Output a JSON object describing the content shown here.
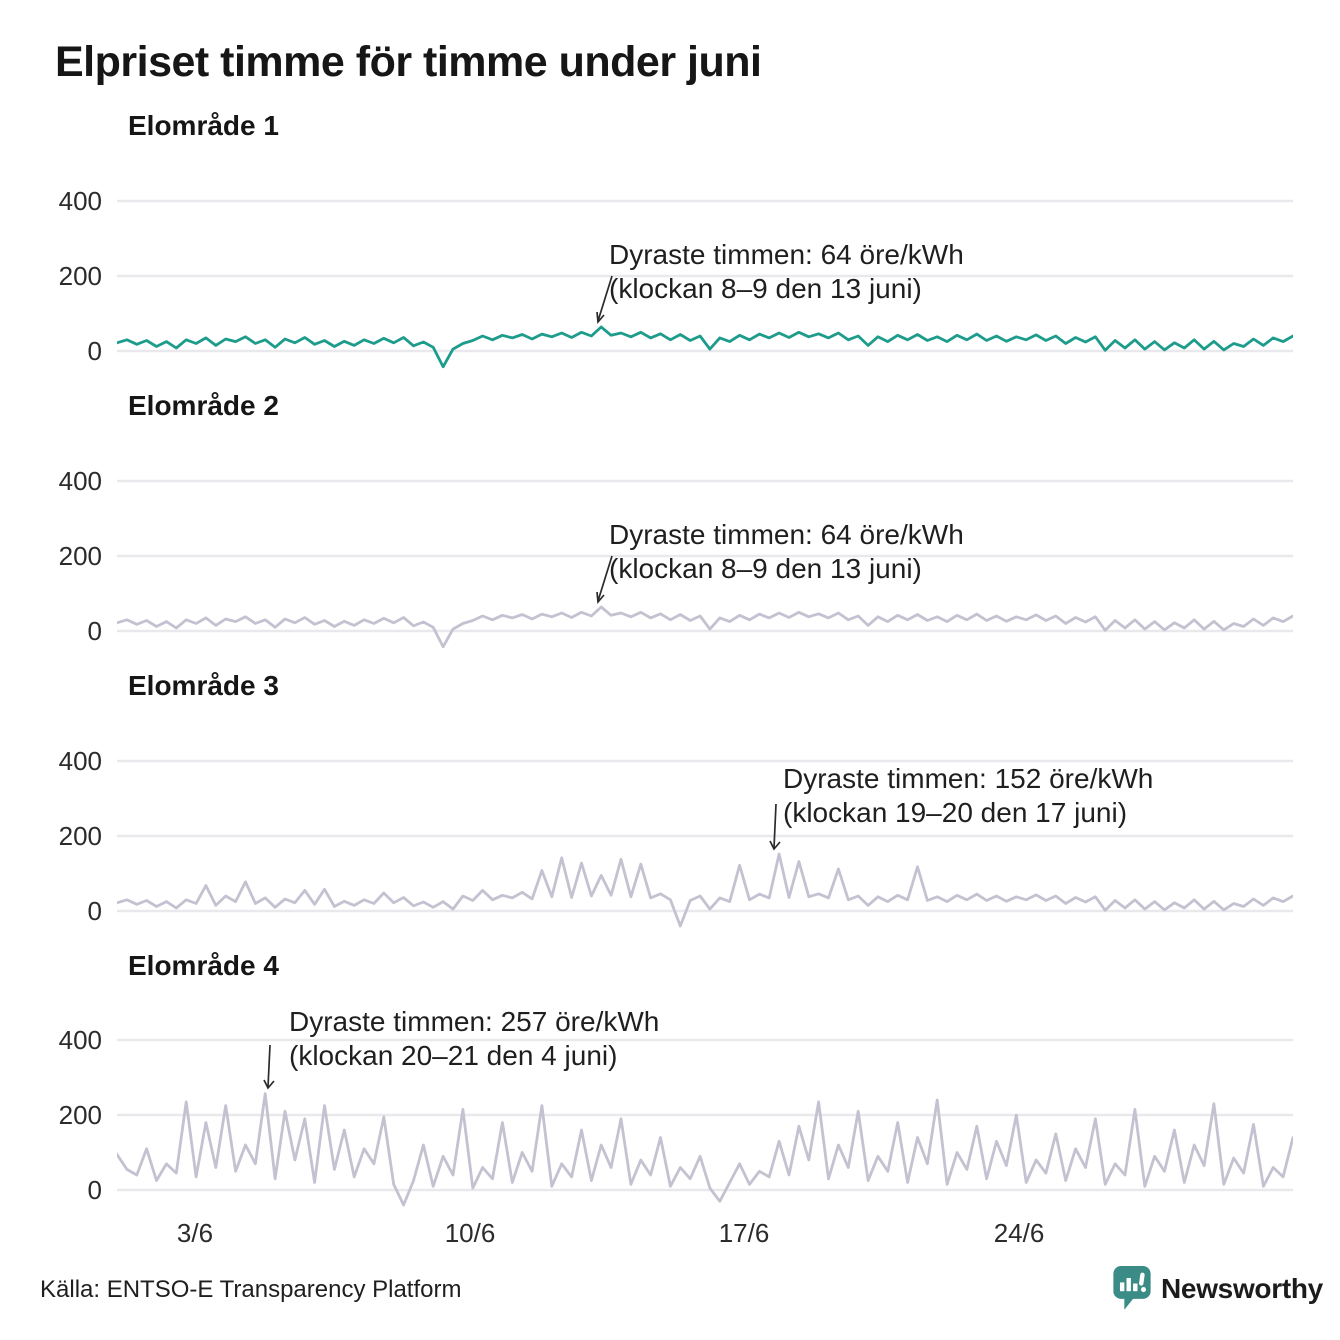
{
  "title": "Elpriset timme för timme under juni",
  "source": "Källa: ENTSO-E Transparency Platform",
  "logo": {
    "text": "Newsworthy",
    "color": "#3b8c86"
  },
  "colors": {
    "teal_line": "#1d9c8c",
    "gray_line": "#c4c2d0",
    "grid": "#e9e9ed",
    "text": "#1f1f1f"
  },
  "y_ticks_display": [
    "400",
    "200",
    "0"
  ],
  "x_axis": {
    "ticks": [
      "3/6",
      "10/6",
      "17/6",
      "24/6"
    ]
  },
  "chart_data": [
    {
      "type": "line",
      "title": "Elområde 1",
      "unit": "öre/kWh",
      "color": "#1d9c8c",
      "x_range": {
        "start": "1/6",
        "end": "30/6",
        "points_per_day": 4
      },
      "x_tick_labels": [
        "3/6",
        "10/6",
        "17/6",
        "24/6"
      ],
      "ylim": [
        -60,
        480
      ],
      "y_ticks": [
        0,
        200,
        400
      ],
      "grid": true,
      "max_point": {
        "value": 64,
        "time": "klockan 8–9 den 13 juni"
      },
      "annotation": {
        "line1": "Dyraste timmen: 64 öre/kWh",
        "line2": "(klockan 8–9 den 13 juni)"
      },
      "values": [
        22,
        30,
        18,
        28,
        12,
        25,
        8,
        30,
        20,
        35,
        15,
        32,
        25,
        38,
        20,
        30,
        10,
        32,
        22,
        36,
        18,
        28,
        12,
        26,
        15,
        30,
        20,
        34,
        22,
        36,
        14,
        24,
        10,
        -42,
        5,
        20,
        28,
        40,
        30,
        42,
        35,
        44,
        32,
        45,
        38,
        48,
        36,
        50,
        40,
        64,
        42,
        48,
        38,
        50,
        35,
        46,
        30,
        44,
        28,
        40,
        5,
        35,
        25,
        42,
        30,
        45,
        35,
        48,
        36,
        50,
        38,
        46,
        35,
        48,
        30,
        40,
        15,
        38,
        25,
        42,
        30,
        44,
        28,
        38,
        25,
        42,
        30,
        45,
        28,
        40,
        26,
        38,
        30,
        43,
        28,
        40,
        20,
        36,
        24,
        38,
        2,
        28,
        8,
        30,
        5,
        25,
        3,
        22,
        8,
        30,
        5,
        26,
        3,
        20,
        12,
        32,
        15,
        35,
        25,
        40
      ]
    },
    {
      "type": "line",
      "title": "Elområde 2",
      "unit": "öre/kWh",
      "color": "#c4c2d0",
      "x_range": {
        "start": "1/6",
        "end": "30/6",
        "points_per_day": 4
      },
      "x_tick_labels": [
        "3/6",
        "10/6",
        "17/6",
        "24/6"
      ],
      "ylim": [
        -60,
        480
      ],
      "y_ticks": [
        0,
        200,
        400
      ],
      "grid": true,
      "max_point": {
        "value": 64,
        "time": "klockan 8–9 den 13 juni"
      },
      "annotation": {
        "line1": "Dyraste timmen: 64 öre/kWh",
        "line2": "(klockan 8–9 den 13 juni)"
      },
      "values": [
        22,
        30,
        18,
        28,
        12,
        25,
        8,
        30,
        20,
        35,
        15,
        32,
        25,
        38,
        20,
        30,
        10,
        32,
        22,
        36,
        18,
        28,
        12,
        26,
        15,
        30,
        20,
        34,
        22,
        36,
        14,
        24,
        10,
        -42,
        5,
        20,
        28,
        40,
        30,
        42,
        35,
        44,
        32,
        45,
        38,
        48,
        36,
        50,
        40,
        64,
        42,
        48,
        38,
        50,
        35,
        46,
        30,
        44,
        28,
        40,
        5,
        35,
        25,
        42,
        30,
        45,
        35,
        48,
        36,
        50,
        38,
        46,
        35,
        48,
        30,
        40,
        15,
        38,
        25,
        42,
        30,
        44,
        28,
        38,
        25,
        42,
        30,
        45,
        28,
        40,
        26,
        38,
        30,
        43,
        28,
        40,
        20,
        36,
        24,
        38,
        2,
        28,
        8,
        30,
        5,
        25,
        3,
        22,
        8,
        30,
        5,
        26,
        3,
        20,
        12,
        32,
        15,
        35,
        25,
        40
      ]
    },
    {
      "type": "line",
      "title": "Elområde 3",
      "unit": "öre/kWh",
      "color": "#c4c2d0",
      "x_range": {
        "start": "1/6",
        "end": "30/6",
        "points_per_day": 4
      },
      "x_tick_labels": [
        "3/6",
        "10/6",
        "17/6",
        "24/6"
      ],
      "ylim": [
        -60,
        480
      ],
      "y_ticks": [
        0,
        200,
        400
      ],
      "grid": true,
      "max_point": {
        "value": 152,
        "time": "klockan 19–20 den 17 juni"
      },
      "annotation": {
        "line1": "Dyraste timmen: 152 öre/kWh",
        "line2": "(klockan 19–20 den 17 juni)"
      },
      "values": [
        22,
        30,
        18,
        28,
        12,
        25,
        8,
        30,
        20,
        68,
        15,
        40,
        25,
        78,
        20,
        35,
        10,
        32,
        22,
        55,
        18,
        58,
        12,
        26,
        15,
        30,
        20,
        48,
        22,
        36,
        14,
        24,
        10,
        25,
        5,
        40,
        28,
        55,
        30,
        42,
        35,
        50,
        32,
        108,
        38,
        142,
        36,
        128,
        40,
        95,
        42,
        138,
        38,
        125,
        35,
        46,
        30,
        -40,
        28,
        40,
        5,
        35,
        25,
        122,
        30,
        45,
        35,
        152,
        36,
        132,
        38,
        46,
        35,
        112,
        30,
        40,
        15,
        38,
        25,
        42,
        30,
        118,
        28,
        38,
        25,
        42,
        30,
        45,
        28,
        40,
        26,
        38,
        30,
        43,
        28,
        40,
        20,
        36,
        24,
        38,
        2,
        28,
        8,
        30,
        5,
        25,
        3,
        22,
        8,
        30,
        5,
        26,
        3,
        20,
        12,
        32,
        15,
        35,
        25,
        40
      ]
    },
    {
      "type": "line",
      "title": "Elområde 4",
      "unit": "öre/kWh",
      "color": "#c4c2d0",
      "x_range": {
        "start": "1/6",
        "end": "30/6",
        "points_per_day": 4
      },
      "x_tick_labels": [
        "3/6",
        "10/6",
        "17/6",
        "24/6"
      ],
      "ylim": [
        -60,
        480
      ],
      "y_ticks": [
        0,
        200,
        400
      ],
      "grid": true,
      "max_point": {
        "value": 257,
        "time": "klockan 20–21 den 4 juni"
      },
      "annotation": {
        "line1": "Dyraste timmen: 257 öre/kWh",
        "line2": "(klockan 20–21 den 4 juni)"
      },
      "values": [
        95,
        55,
        40,
        110,
        25,
        70,
        45,
        235,
        35,
        180,
        60,
        225,
        50,
        120,
        70,
        257,
        30,
        210,
        80,
        190,
        20,
        225,
        55,
        160,
        35,
        110,
        70,
        195,
        15,
        -40,
        25,
        120,
        10,
        90,
        40,
        215,
        5,
        60,
        30,
        180,
        20,
        100,
        50,
        225,
        10,
        70,
        35,
        160,
        25,
        120,
        60,
        190,
        15,
        80,
        40,
        140,
        10,
        60,
        30,
        90,
        5,
        -30,
        20,
        70,
        15,
        50,
        35,
        130,
        40,
        170,
        80,
        235,
        30,
        120,
        60,
        210,
        25,
        90,
        50,
        180,
        20,
        140,
        70,
        240,
        15,
        100,
        55,
        170,
        30,
        130,
        65,
        200,
        20,
        80,
        45,
        150,
        25,
        110,
        60,
        190,
        15,
        70,
        40,
        215,
        10,
        90,
        50,
        160,
        20,
        120,
        65,
        230,
        15,
        85,
        45,
        175,
        10,
        60,
        35,
        140
      ]
    }
  ]
}
